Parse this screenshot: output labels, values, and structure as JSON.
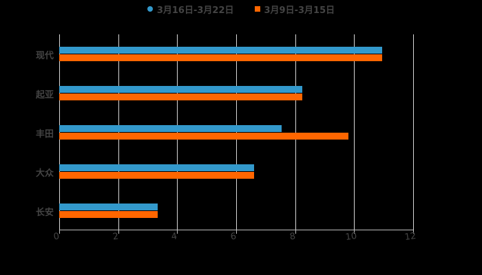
{
  "chart_data": {
    "type": "bar",
    "orientation": "horizontal",
    "title": "",
    "xlabel": "",
    "ylabel": "",
    "categories": [
      "现代",
      "起亚",
      "丰田",
      "大众",
      "长安"
    ],
    "series": [
      {
        "name": "3月16日-3月22日",
        "color": "#3399cc",
        "marker": "circle",
        "values": [
          10.95,
          8.25,
          7.55,
          6.6,
          3.35
        ]
      },
      {
        "name": "3月9日-3月15日",
        "color": "#ff6600",
        "marker": "square",
        "values": [
          10.95,
          8.25,
          9.8,
          6.6,
          3.35
        ]
      }
    ],
    "xlim": [
      0,
      12
    ],
    "xticks": [
      "0",
      "2",
      "4",
      "6",
      "8",
      "10",
      "12"
    ],
    "grid": true,
    "legend_position": "top"
  },
  "legend": [
    {
      "label": "3月16日-3月22日",
      "color": "#3399cc"
    },
    {
      "label": "3月9日-3月15日",
      "color": "#ff6600"
    }
  ]
}
